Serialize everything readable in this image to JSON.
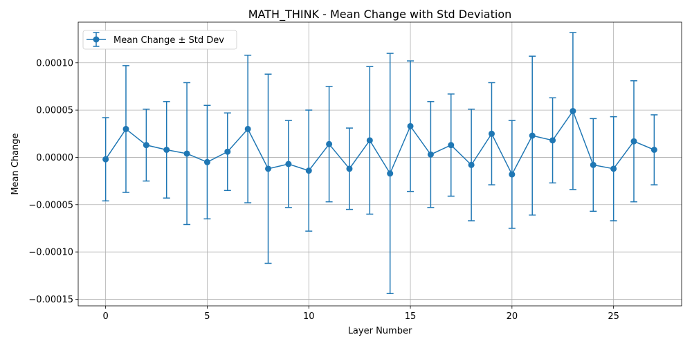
{
  "chart_data": {
    "type": "line",
    "title": "MATH_THINK - Mean Change with Std Deviation",
    "xlabel": "Layer Number",
    "ylabel": "Mean Change",
    "xlim": [
      -1.35,
      28.35
    ],
    "ylim": [
      -0.000157,
      0.000143
    ],
    "xticks": [
      0,
      5,
      10,
      15,
      20,
      25
    ],
    "xtick_labels": [
      "0",
      "5",
      "10",
      "15",
      "20",
      "25"
    ],
    "yticks": [
      -0.00015,
      -0.0001,
      -5e-05,
      0,
      5e-05,
      0.0001
    ],
    "ytick_labels": [
      "−0.00015",
      "−0.00010",
      "−0.00005",
      "0.00000",
      "0.00005",
      "0.00010"
    ],
    "grid": true,
    "legend_position": "top-left",
    "color": "#1f77b4",
    "series": [
      {
        "name": "Mean Change ± Std Dev",
        "x": [
          0,
          1,
          2,
          3,
          4,
          5,
          6,
          7,
          8,
          9,
          10,
          11,
          12,
          13,
          14,
          15,
          16,
          17,
          18,
          19,
          20,
          21,
          22,
          23,
          24,
          25,
          26,
          27
        ],
        "y": [
          -2e-06,
          3e-05,
          1.3e-05,
          8e-06,
          4e-06,
          -5e-06,
          6e-06,
          3e-05,
          -1.2e-05,
          -7e-06,
          -1.4e-05,
          1.4e-05,
          -1.2e-05,
          1.8e-05,
          -1.7e-05,
          3.3e-05,
          3e-06,
          1.3e-05,
          -8e-06,
          2.5e-05,
          -1.8e-05,
          2.3e-05,
          1.8e-05,
          4.9e-05,
          -8e-06,
          -1.2e-05,
          1.7e-05,
          8e-06
        ],
        "error": [
          4.4e-05,
          6.7e-05,
          3.8e-05,
          5.1e-05,
          7.5e-05,
          6e-05,
          4.1e-05,
          7.8e-05,
          0.0001,
          4.6e-05,
          6.4e-05,
          6.1e-05,
          4.3e-05,
          7.8e-05,
          0.000127,
          6.9e-05,
          5.6e-05,
          5.4e-05,
          5.9e-05,
          5.4e-05,
          5.7e-05,
          8.4e-05,
          4.5e-05,
          8.3e-05,
          4.9e-05,
          5.5e-05,
          6.4e-05,
          3.7e-05
        ]
      }
    ]
  }
}
